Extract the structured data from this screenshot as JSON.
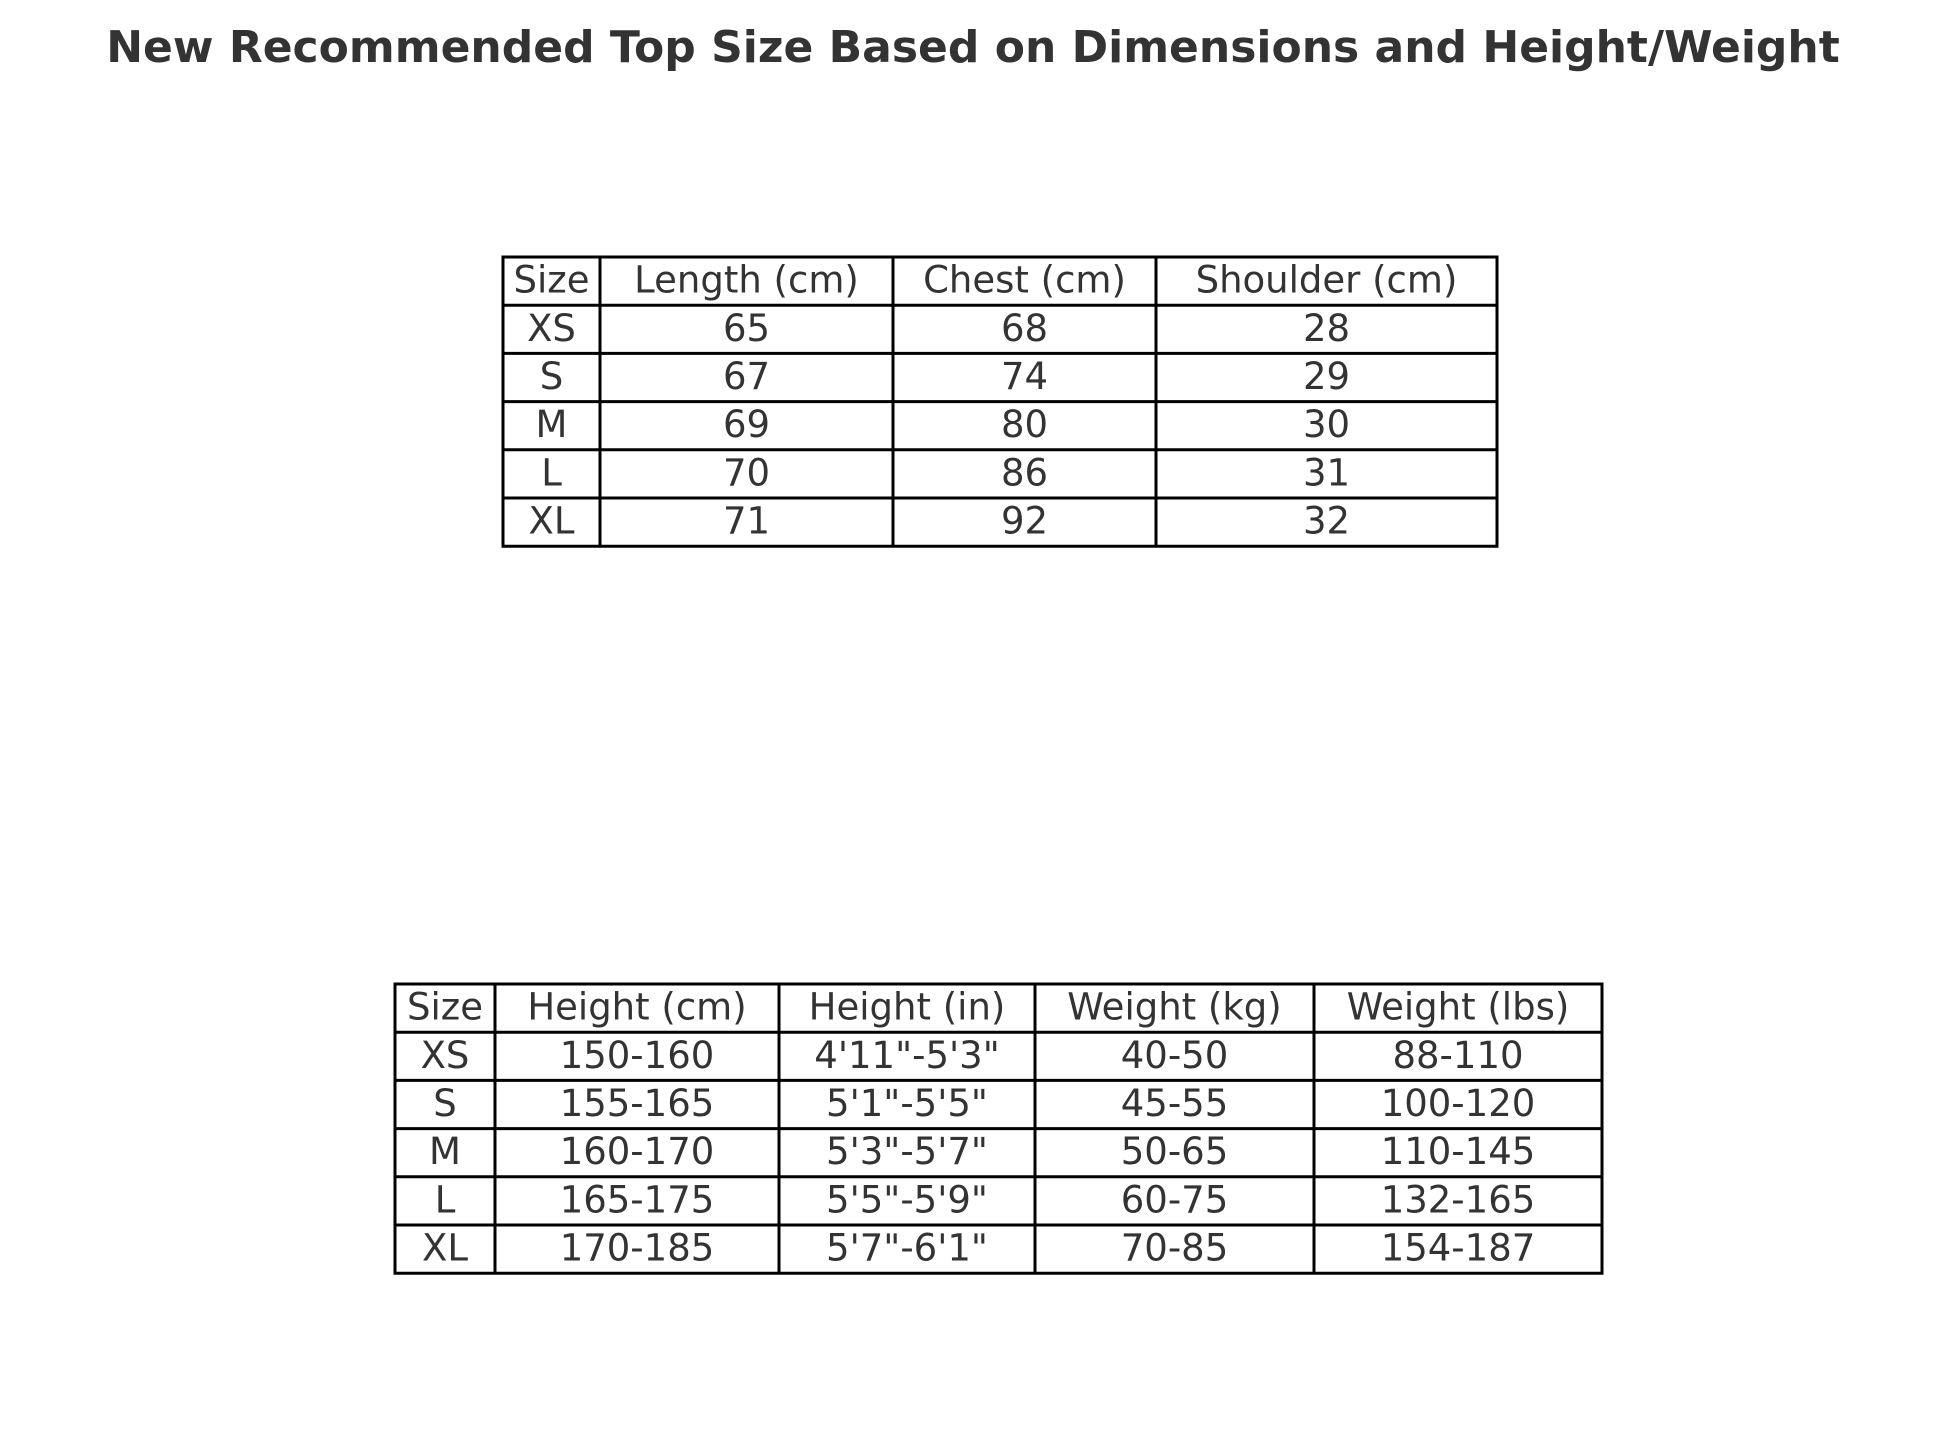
{
  "title": "New Recommended Top Size Based on Dimensions and Height/Weight",
  "tables": [
    {
      "header": [
        "Size",
        "Length (cm)",
        "Chest (cm)",
        "Shoulder (cm)"
      ],
      "rows": [
        [
          "XS",
          65,
          68,
          28
        ],
        [
          "S",
          67,
          74,
          29
        ],
        [
          "M",
          69,
          80,
          30
        ],
        [
          "L",
          70,
          86,
          31
        ],
        [
          "XL",
          71,
          92,
          32
        ]
      ]
    },
    {
      "header": [
        "Size",
        "Height (cm)",
        "Height (in)",
        "Weight (kg)",
        "Weight (lbs)"
      ],
      "rows": [
        [
          "XS",
          "150-160",
          "4'11\"-5'3\"",
          "40-50",
          "88-110"
        ],
        [
          "S",
          "155-165",
          "5'1\"-5'5\"",
          "45-55",
          "100-120"
        ],
        [
          "M",
          "160-170",
          "5'3\"-5'7\"",
          "50-65",
          "110-145"
        ],
        [
          "L",
          "165-175",
          "5'5\"-5'9\"",
          "60-75",
          "132-165"
        ],
        [
          "XL",
          "170-185",
          "5'7\"-6'1\"",
          "70-85",
          "154-187"
        ]
      ]
    }
  ]
}
